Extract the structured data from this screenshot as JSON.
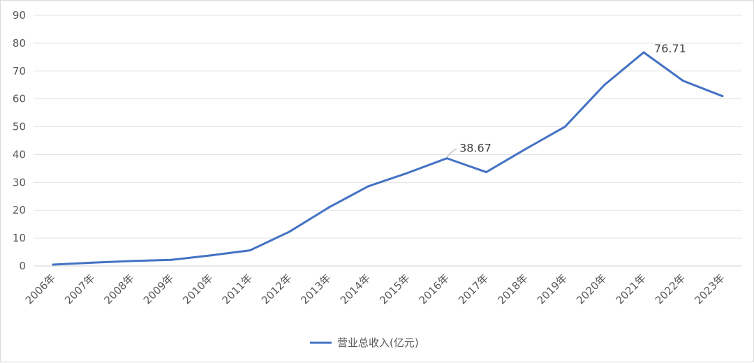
{
  "chart_data": {
    "type": "line",
    "title": "",
    "xlabel": "",
    "ylabel": "",
    "categories": [
      "2006年",
      "2007年",
      "2008年",
      "2009年",
      "2010年",
      "2011年",
      "2012年",
      "2013年",
      "2014年",
      "2015年",
      "2016年",
      "2017年",
      "2018年",
      "2019年",
      "2020年",
      "2021年",
      "2022年",
      "2023年"
    ],
    "series": [
      {
        "name": "营业总收入(亿元)",
        "color": "#4472c4",
        "values": [
          0.5,
          1.2,
          1.8,
          2.2,
          3.8,
          5.6,
          12.3,
          21.0,
          28.6,
          33.4,
          38.67,
          33.7,
          42.0,
          50.0,
          65.0,
          76.71,
          66.5,
          61.0
        ]
      }
    ],
    "ylim": [
      0,
      90
    ],
    "yticks": [
      0,
      10,
      20,
      30,
      40,
      50,
      60,
      70,
      80,
      90
    ],
    "grid": true,
    "legend_position": "bottom",
    "annotations": [
      {
        "category": "2016年",
        "text": "38.67"
      },
      {
        "category": "2021年",
        "text": "76.71"
      }
    ]
  }
}
